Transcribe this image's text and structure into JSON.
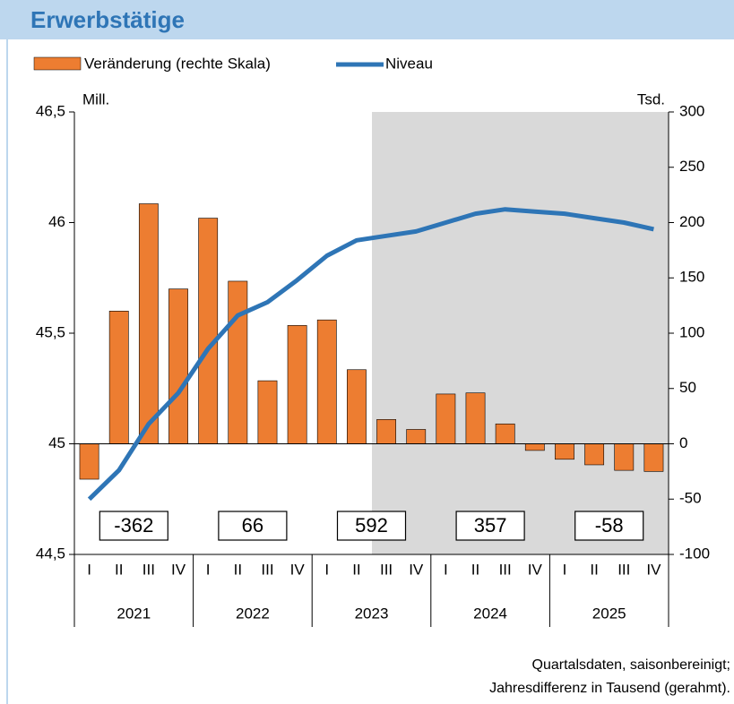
{
  "chart_data": {
    "type": "bar_line",
    "title": "Erwerbstätige",
    "y_label": "Mill.",
    "y2_label": "Tsd.",
    "categories": [
      "I",
      "II",
      "III",
      "IV",
      "I",
      "II",
      "III",
      "IV",
      "I",
      "II",
      "III",
      "IV",
      "I",
      "II",
      "III",
      "IV",
      "I",
      "II",
      "III",
      "IV"
    ],
    "years": [
      "2021",
      "2022",
      "2023",
      "2024",
      "2025"
    ],
    "annual_totals": [
      -362,
      66,
      592,
      357,
      -58
    ],
    "series": [
      {
        "name": "Veränderung (rechte Skala)",
        "color": "#ED7D31",
        "kind": "bar",
        "axis": "y2",
        "values": [
          -32,
          120,
          217,
          140,
          204,
          147,
          57,
          107,
          112,
          67,
          22,
          13,
          45,
          46,
          18,
          -6,
          -14,
          -19,
          -24,
          -25
        ]
      },
      {
        "name": "Niveau",
        "color": "#2E75B6",
        "kind": "line",
        "axis": "y",
        "values": [
          44.75,
          44.88,
          45.09,
          45.23,
          45.43,
          45.58,
          45.64,
          45.74,
          45.85,
          45.92,
          45.94,
          45.96,
          46.0,
          46.04,
          46.06,
          46.05,
          46.04,
          46.02,
          46.0,
          45.97
        ]
      }
    ],
    "ylim": [
      44.5,
      46.5
    ],
    "yticks": [
      {
        "value": 44.5,
        "label": "44,5"
      },
      45,
      {
        "value": 45.5,
        "label": "45,5"
      },
      46,
      {
        "value": 46.5,
        "label": "46,5"
      }
    ],
    "y2lim": [
      -100,
      300
    ],
    "y2ticks": [
      -100,
      -50,
      0,
      50,
      100,
      150,
      200,
      250,
      300
    ],
    "footnote": [
      "Quartalsdaten, saisonbereinigt;",
      "Jahresdifferenz in Tausend (gerahmt)."
    ]
  }
}
